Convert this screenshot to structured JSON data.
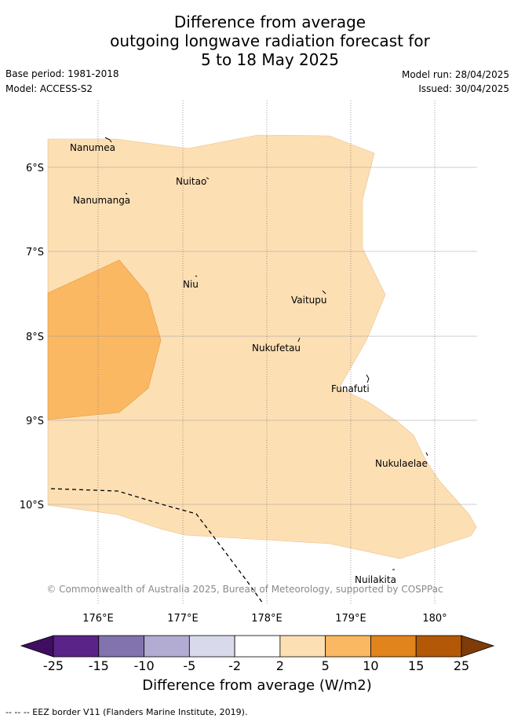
{
  "title": {
    "line1": "Difference from average",
    "line2": "outgoing longwave radiation forecast for",
    "line3": "5 to 18 May 2025"
  },
  "meta": {
    "base_period": "Base period: 1981-2018",
    "model": "Model: ACCESS-S2",
    "model_run": "Model run: 28/04/2025",
    "issued": "Issued: 30/04/2025"
  },
  "map": {
    "lat_labels": [
      "6°S",
      "7°S",
      "8°S",
      "9°S",
      "10°S"
    ],
    "lon_labels": [
      "176°E",
      "177°E",
      "178°E",
      "179°E",
      "180°"
    ],
    "places": {
      "nanumea": "Nanumea",
      "nuitao": "Nuitao",
      "nanumanga": "Nanumanga",
      "niu": "Niu",
      "vaitupu": "Vaitupu",
      "nukufetau": "Nukufetau",
      "funafuti": "Funafuti",
      "nukulaelae": "Nukulaelae",
      "nuilakita": "Nuilakita"
    },
    "copyright": "© Commonwealth of Australia 2025, Bureau of Meteorology, supported by COSPPac",
    "class_colors": {
      "2_to_5": "#fddfb4",
      "5_to_10": "#fbb862"
    }
  },
  "colorbar": {
    "ticks": [
      "-25",
      "-15",
      "-10",
      "-5",
      "-2",
      "2",
      "5",
      "10",
      "15",
      "25"
    ],
    "colors": [
      "#5a2387",
      "#8273ae",
      "#b2abd2",
      "#d8d9eb",
      "#ffffff",
      "#fddfb4",
      "#fbb862",
      "#e1841c",
      "#b35806"
    ],
    "under_color": "#3f0e61",
    "over_color": "#7f3b08",
    "title": "Difference from average (W/m2)"
  },
  "legend": {
    "eez": "-- -- -- EEZ border V11 (Flanders Marine Institute, 2019)."
  }
}
